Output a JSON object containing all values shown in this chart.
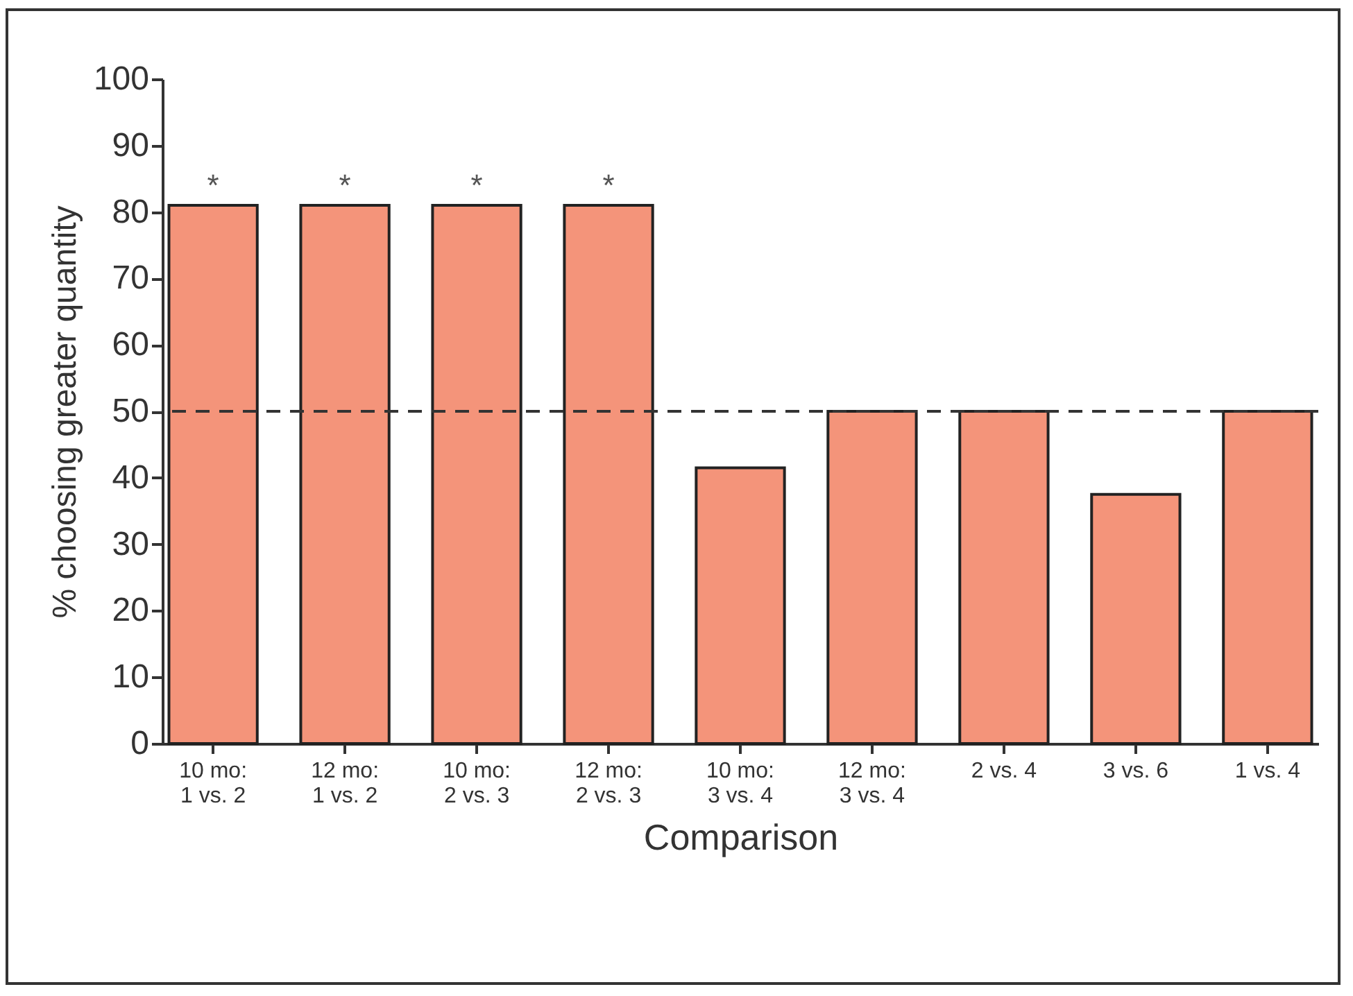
{
  "chart_data": {
    "type": "bar",
    "xlabel": "Comparison",
    "ylabel": "% choosing greater quantity",
    "categories": [
      "10 mo:\n1 vs. 2",
      "12 mo:\n1 vs. 2",
      "10 mo:\n2 vs. 3",
      "12 mo:\n2 vs. 3",
      "10 mo:\n3 vs. 4",
      "12 mo:\n3 vs. 4",
      "2 vs. 4",
      "3 vs. 6",
      "1 vs. 4"
    ],
    "values": [
      81,
      81,
      81,
      81,
      41.5,
      50,
      50,
      37.5,
      50
    ],
    "color": "#f4947a",
    "ylim": [
      0,
      100
    ],
    "yticks": [
      0,
      10,
      20,
      30,
      40,
      50,
      60,
      70,
      80,
      90,
      100
    ],
    "grid": false,
    "ref_lines": [
      {
        "axis": "y",
        "value": 50,
        "line_style": "dashed",
        "color": "#333333"
      }
    ],
    "annotations": [
      {
        "text": "*",
        "x": "10 mo:\n1 vs. 2",
        "y": 81
      },
      {
        "text": "*",
        "x": "12 mo:\n1 vs. 2",
        "y": 81
      },
      {
        "text": "*",
        "x": "10 mo:\n2 vs. 3",
        "y": 81
      },
      {
        "text": "*",
        "x": "12 mo:\n2 vs. 3",
        "y": 81
      }
    ]
  }
}
